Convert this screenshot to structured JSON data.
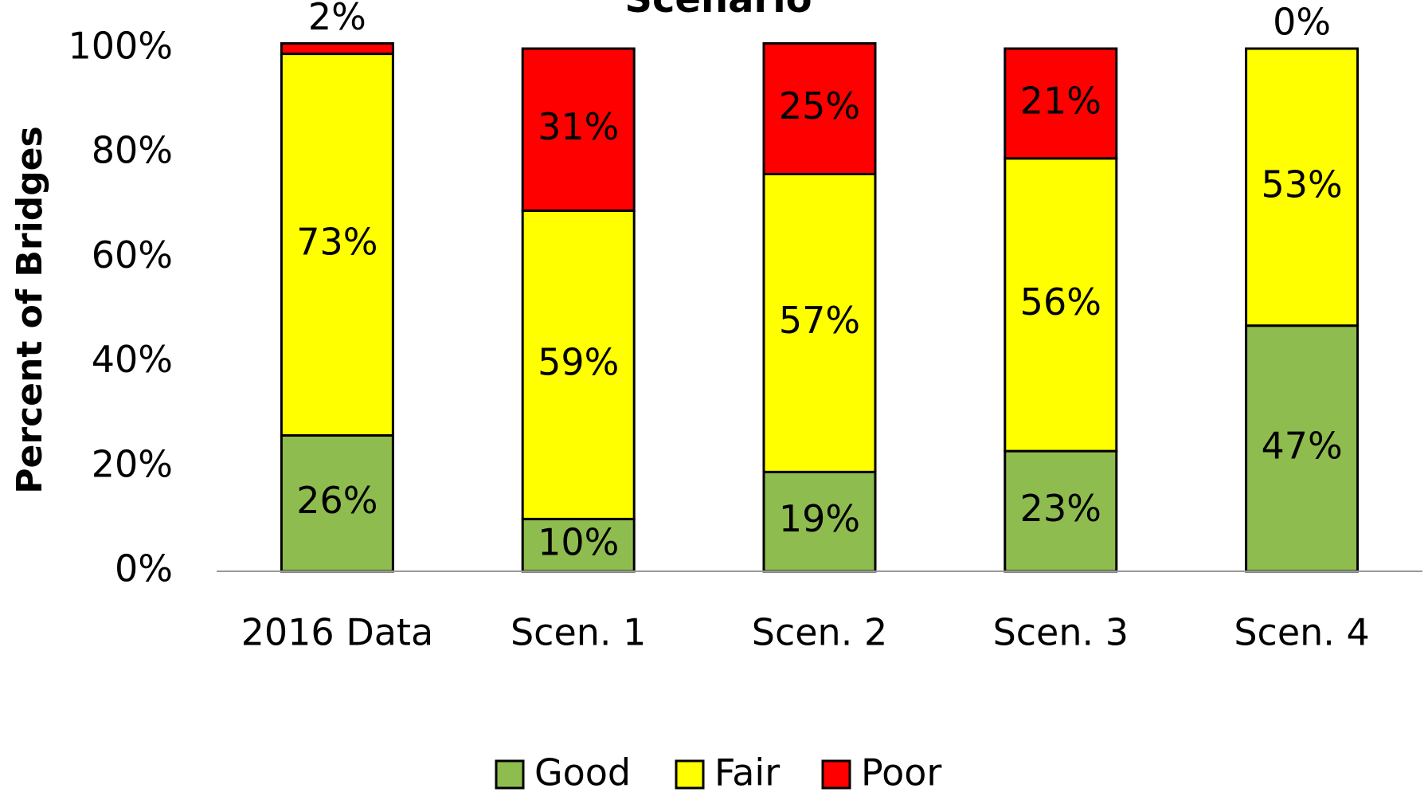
{
  "chart_data": {
    "type": "stacked_bar",
    "title": "Scenario",
    "y_label": "Percent of Bridges",
    "categories": [
      "2016 Data",
      "Scen. 1",
      "Scen. 2",
      "Scen. 3",
      "Scen. 4"
    ],
    "series": [
      {
        "name": "Good",
        "color": "#8fbc4f",
        "values": [
          26,
          10,
          19,
          23,
          47
        ],
        "value_labels": [
          "26%",
          "10%",
          "19%",
          "23%",
          "47%"
        ]
      },
      {
        "name": "Fair",
        "color": "#ffff00",
        "values": [
          73,
          59,
          57,
          56,
          53
        ],
        "value_labels": [
          "73%",
          "59%",
          "57%",
          "56%",
          "53%"
        ]
      },
      {
        "name": "Poor",
        "color": "#ff0000",
        "values": [
          2,
          31,
          25,
          21,
          0
        ],
        "value_labels": [
          "2%",
          "31%",
          "25%",
          "21%",
          "0%"
        ]
      }
    ],
    "ylim": [
      0,
      100
    ],
    "yticks": [
      {
        "value": 0,
        "label": "0%"
      },
      {
        "value": 20,
        "label": "20%"
      },
      {
        "value": 40,
        "label": "40%"
      },
      {
        "value": 60,
        "label": "60%"
      },
      {
        "value": 80,
        "label": "80%"
      },
      {
        "value": 100,
        "label": "100%"
      }
    ],
    "legend": "bottom"
  }
}
